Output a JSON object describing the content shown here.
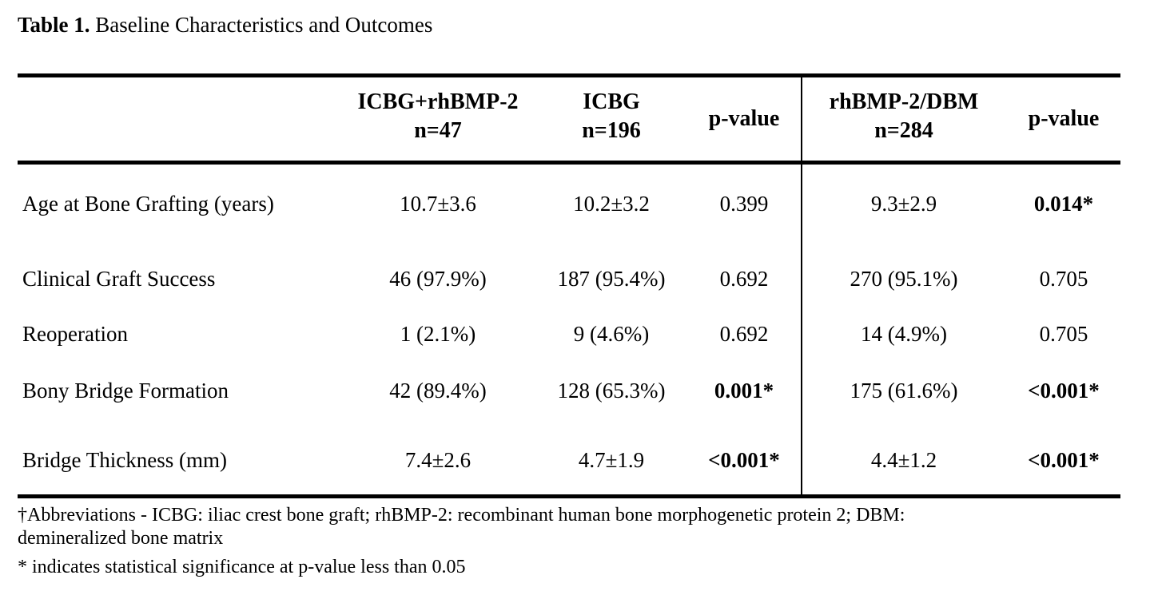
{
  "caption": {
    "label": "Table 1.",
    "text": "Baseline Characteristics and Outcomes"
  },
  "columns": [
    {
      "line1": "",
      "line2": ""
    },
    {
      "line1": "ICBG+rhBMP-2",
      "line2": "n=47"
    },
    {
      "line1": "ICBG",
      "line2": "n=196"
    },
    {
      "line1": "p-value",
      "line2": ""
    },
    {
      "line1": "rhBMP-2/DBM",
      "line2": "n=284"
    },
    {
      "line1": "p-value",
      "line2": ""
    }
  ],
  "rows": [
    {
      "label": "Age at Bone Grafting (years)",
      "icbg_rhbmp": "10.7±3.6",
      "icbg": "10.2±3.2",
      "p1": "0.399",
      "rhbmp_dbm": "9.3±2.9",
      "p2": "0.014*"
    },
    {
      "label": "Clinical Graft Success",
      "icbg_rhbmp": "46 (97.9%)",
      "icbg": "187 (95.4%)",
      "p1": "0.692",
      "rhbmp_dbm": "270 (95.1%)",
      "p2": "0.705"
    },
    {
      "label": "Reoperation",
      "icbg_rhbmp": "1 (2.1%)",
      "icbg": "9 (4.6%)",
      "p1": "0.692",
      "rhbmp_dbm": "14 (4.9%)",
      "p2": "0.705"
    },
    {
      "label": "Bony Bridge Formation",
      "icbg_rhbmp": "42 (89.4%)",
      "icbg": "128 (65.3%)",
      "p1": "0.001*",
      "rhbmp_dbm": "175 (61.6%)",
      "p2": "<0.001*"
    },
    {
      "label": "Bridge Thickness (mm)",
      "icbg_rhbmp": "7.4±2.6",
      "icbg": "4.7±1.9",
      "p1": "<0.001*",
      "rhbmp_dbm": "4.4±1.2",
      "p2": "<0.001*"
    }
  ],
  "footnotes": {
    "abbrev_line1": "†Abbreviations - ICBG: iliac crest bone graft; rhBMP-2: recombinant human bone morphogenetic protein 2; DBM:",
    "abbrev_line2": "demineralized bone matrix",
    "significance": "* indicates statistical significance at p-value less than 0.05"
  }
}
